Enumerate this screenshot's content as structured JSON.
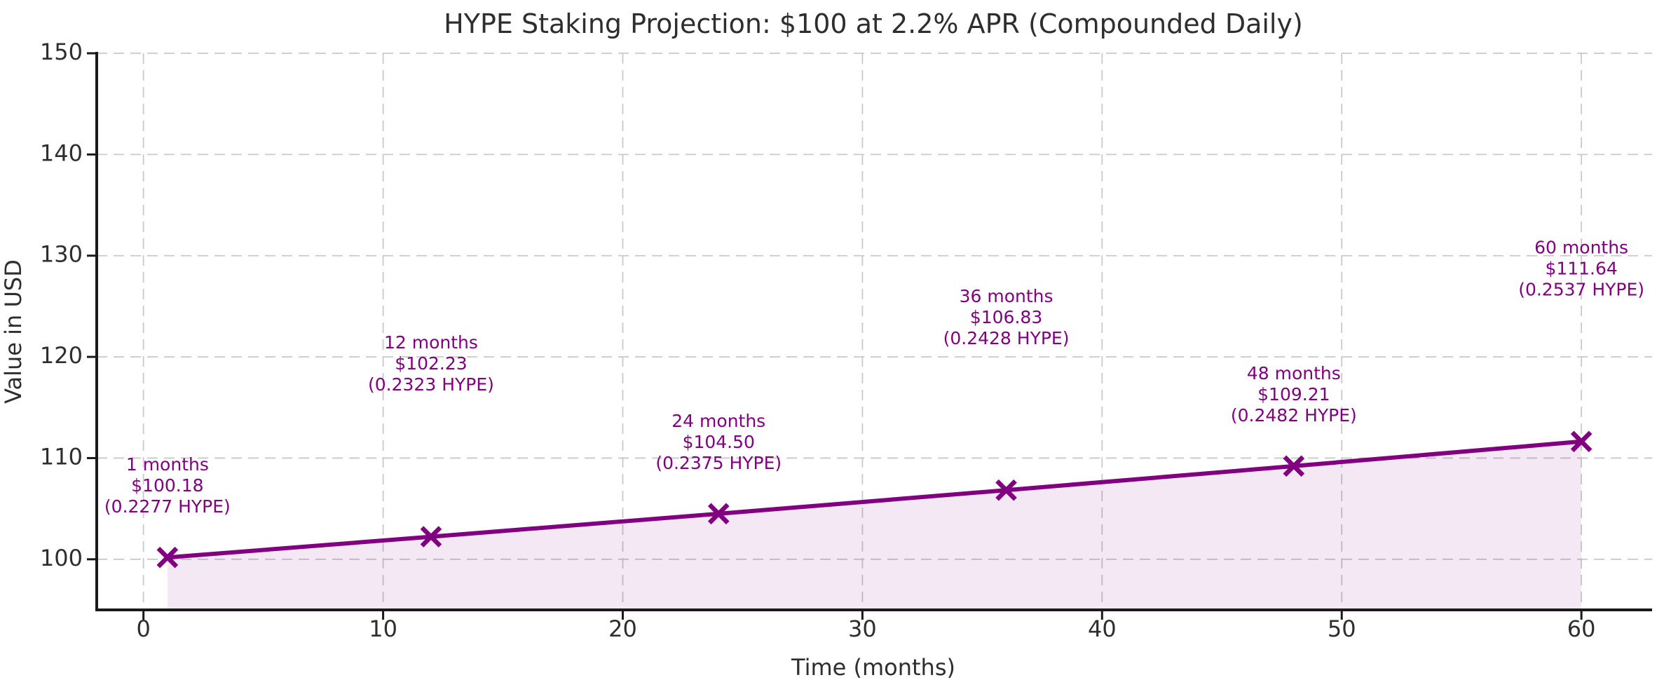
{
  "chart_data": {
    "type": "line",
    "title": "HYPE Staking Projection: $100 at 2.2% APR (Compounded Daily)",
    "xlabel": "Time (months)",
    "ylabel": "Value in USD",
    "xlim": [
      -1.95,
      62.95
    ],
    "ylim": [
      95,
      150
    ],
    "xticks": [
      0,
      10,
      20,
      30,
      40,
      50,
      60
    ],
    "yticks": [
      100,
      110,
      120,
      130,
      140,
      150
    ],
    "grid": "dashed",
    "legend": "none",
    "colors": {
      "line": "#800080",
      "marker": "#800080",
      "fill": "rgba(128,0,128,0.09)",
      "annotation": "#800080",
      "grid": "#c9c9c9",
      "axis": "#1a1a1a",
      "text": "#2e2e2e",
      "background": "#ffffff"
    },
    "marker_style": "x",
    "series": [
      {
        "name": "staking-value",
        "x": [
          1,
          12,
          24,
          36,
          48,
          60
        ],
        "y": [
          100.18,
          102.23,
          104.5,
          106.83,
          109.21,
          111.64
        ],
        "hype": [
          0.2277,
          0.2323,
          0.2375,
          0.2428,
          0.2482,
          0.2537
        ],
        "fill_to_bottom": true
      }
    ],
    "annotations": [
      {
        "x": 1,
        "y": 100.18,
        "lines": [
          "1 months",
          "$100.18",
          "(0.2277 HYPE)"
        ],
        "offset_usd": 7
      },
      {
        "x": 12,
        "y": 102.23,
        "lines": [
          "12 months",
          "$102.23",
          "(0.2323 HYPE)"
        ],
        "offset_usd": 17
      },
      {
        "x": 24,
        "y": 104.5,
        "lines": [
          "24 months",
          "$104.50",
          "(0.2375 HYPE)"
        ],
        "offset_usd": 7
      },
      {
        "x": 36,
        "y": 106.83,
        "lines": [
          "36 months",
          "$106.83",
          "(0.2428 HYPE)"
        ],
        "offset_usd": 17
      },
      {
        "x": 48,
        "y": 109.21,
        "lines": [
          "48 months",
          "$109.21",
          "(0.2482 HYPE)"
        ],
        "offset_usd": 7
      },
      {
        "x": 60,
        "y": 111.64,
        "lines": [
          "60 months",
          "$111.64",
          "(0.2537 HYPE)"
        ],
        "offset_usd": 17
      }
    ]
  }
}
